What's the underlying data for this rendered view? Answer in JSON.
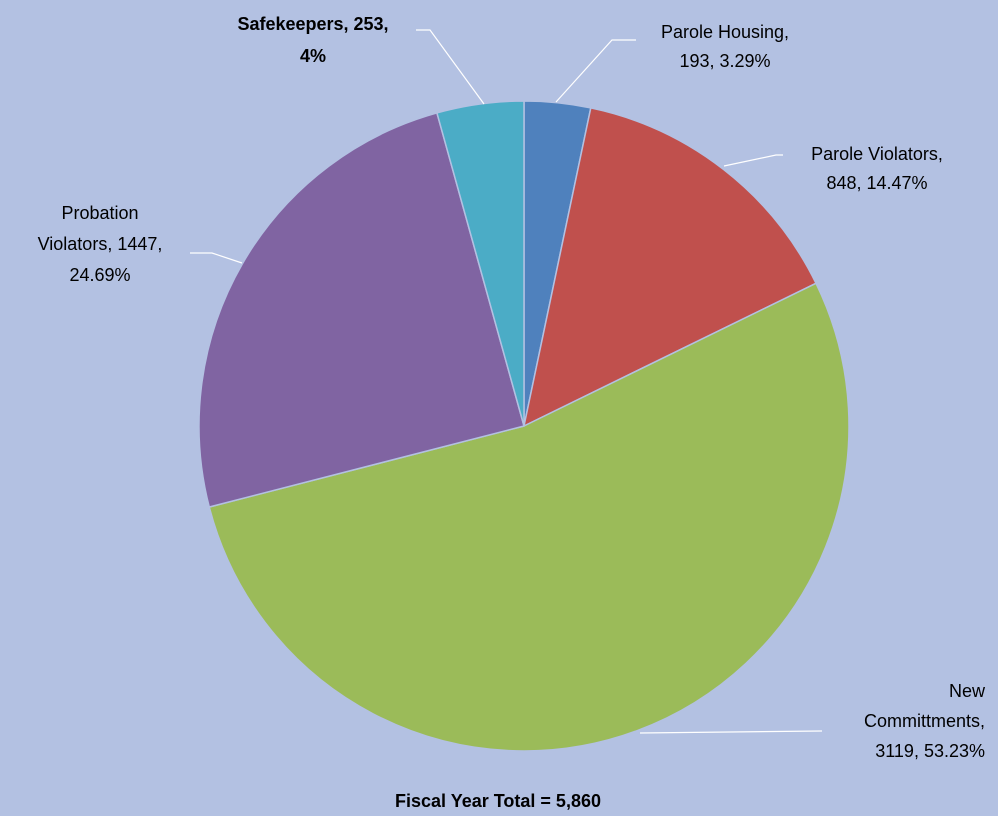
{
  "chart_data": {
    "type": "pie",
    "title": "Fiscal Year Total = 5,860",
    "values": [
      193,
      848,
      3119,
      1447,
      253
    ],
    "value_labels": [
      [
        "Parole Housing,",
        "193, 3.29%"
      ],
      [
        "Parole Violators,",
        "848, 14.47%"
      ],
      [
        "New",
        "Committments,",
        "3119, 53.23%"
      ],
      [
        "Probation",
        "Violators, 1447,",
        "24.69%"
      ],
      [
        "Safekeepers, 253,",
        "4%"
      ]
    ],
    "colors": [
      "#4f81bd",
      "#c0504d",
      "#9bbb59",
      "#8064a2",
      "#4bacc6"
    ]
  }
}
